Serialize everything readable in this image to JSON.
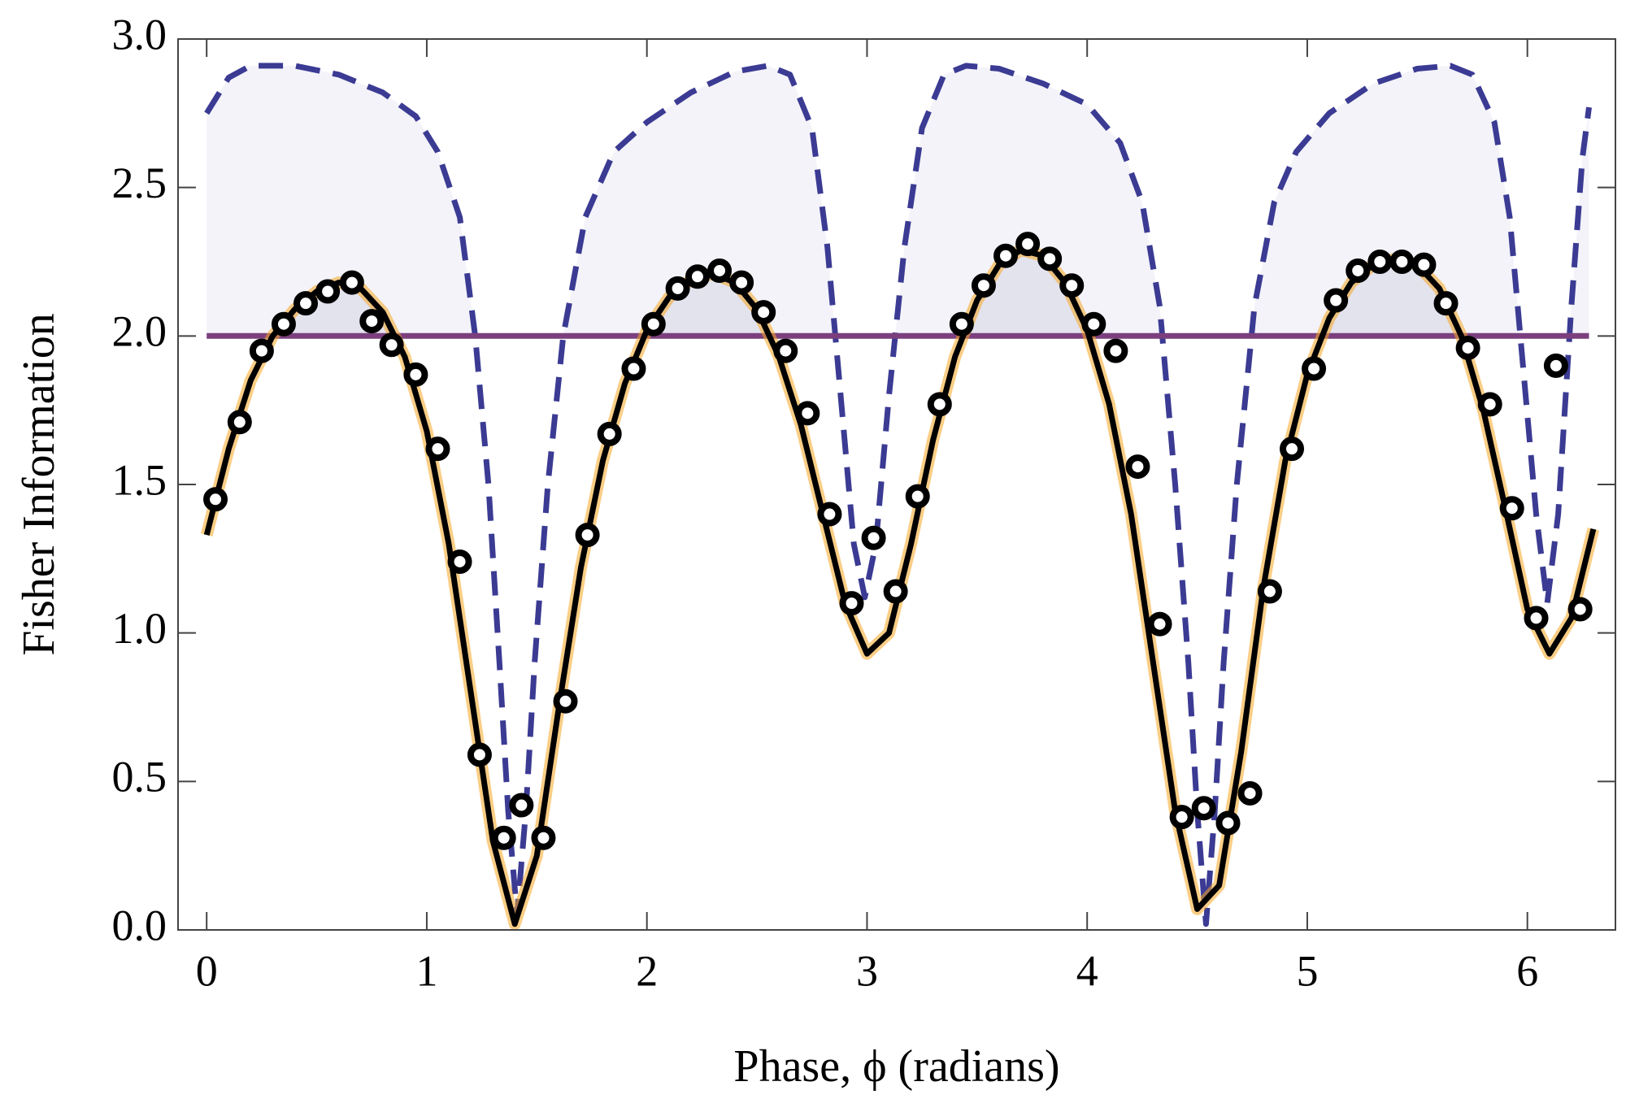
{
  "chart_data": {
    "type": "line",
    "xlabel": "Phase, ϕ (radians)",
    "ylabel": "Fisher Information",
    "xlim": [
      -0.13,
      6.4
    ],
    "ylim": [
      0,
      3
    ],
    "xticks": [
      0,
      1,
      2,
      3,
      4,
      5,
      6
    ],
    "yticks": [
      {
        "value": 0,
        "label": "0.0"
      },
      0.5,
      {
        "value": 1,
        "label": "1.0"
      },
      1.5,
      {
        "value": 2,
        "label": "2.0"
      },
      2.5,
      {
        "value": 3,
        "label": "3.0"
      }
    ],
    "series": [
      {
        "style": "dashed",
        "color": "#3b3b94",
        "fill": "#f3f3f9",
        "x": [
          0,
          0.1,
          0.2,
          0.3,
          0.4,
          0.6,
          0.8,
          0.95,
          1.05,
          1.15,
          1.22,
          1.28,
          1.33,
          1.37,
          1.41,
          1.45,
          1.49,
          1.55,
          1.62,
          1.72,
          1.85,
          2.0,
          2.2,
          2.4,
          2.55,
          2.65,
          2.75,
          2.82,
          2.88,
          2.94,
          2.99,
          3.04,
          3.1,
          3.17,
          3.25,
          3.35,
          3.45,
          3.6,
          3.8,
          4.0,
          4.15,
          4.25,
          4.33,
          4.4,
          4.46,
          4.5,
          4.54,
          4.58,
          4.62,
          4.68,
          4.76,
          4.85,
          4.95,
          5.1,
          5.3,
          5.5,
          5.65,
          5.75,
          5.85,
          5.92,
          5.98,
          6.04,
          6.09,
          6.14,
          6.2,
          6.25,
          6.28
        ],
        "values": [
          2.75,
          2.87,
          2.91,
          2.91,
          2.91,
          2.88,
          2.82,
          2.74,
          2.62,
          2.4,
          2.0,
          1.5,
          0.9,
          0.4,
          0.05,
          0.4,
          0.9,
          1.5,
          2.0,
          2.4,
          2.62,
          2.72,
          2.82,
          2.89,
          2.91,
          2.88,
          2.7,
          2.3,
          1.8,
          1.3,
          1.12,
          1.3,
          1.8,
          2.3,
          2.7,
          2.88,
          2.91,
          2.9,
          2.85,
          2.78,
          2.65,
          2.45,
          2.1,
          1.5,
          0.9,
          0.4,
          0.02,
          0.4,
          0.9,
          1.5,
          2.1,
          2.45,
          2.62,
          2.75,
          2.85,
          2.9,
          2.91,
          2.88,
          2.72,
          2.4,
          1.9,
          1.4,
          1.1,
          1.4,
          2.1,
          2.6,
          2.77
        ]
      },
      {
        "style": "solid",
        "color": "#000000",
        "band_color": "#f5a623",
        "fill": "#e3e3ee",
        "x": [
          0,
          0.1,
          0.2,
          0.3,
          0.4,
          0.5,
          0.6,
          0.7,
          0.8,
          0.9,
          1.0,
          1.1,
          1.2,
          1.3,
          1.4,
          1.5,
          1.6,
          1.7,
          1.8,
          1.9,
          2.0,
          2.1,
          2.2,
          2.3,
          2.4,
          2.5,
          2.6,
          2.7,
          2.8,
          2.9,
          3.0,
          3.1,
          3.2,
          3.3,
          3.4,
          3.5,
          3.6,
          3.7,
          3.8,
          3.9,
          4.0,
          4.1,
          4.2,
          4.3,
          4.4,
          4.5,
          4.6,
          4.7,
          4.8,
          4.9,
          5.0,
          5.1,
          5.2,
          5.3,
          5.4,
          5.5,
          5.6,
          5.7,
          5.8,
          5.9,
          6.0,
          6.1,
          6.2,
          6.3
        ],
        "values": [
          1.33,
          1.62,
          1.85,
          2.0,
          2.09,
          2.15,
          2.18,
          2.16,
          2.08,
          1.93,
          1.68,
          1.3,
          0.8,
          0.3,
          0.02,
          0.25,
          0.75,
          1.22,
          1.58,
          1.84,
          2.02,
          2.13,
          2.19,
          2.21,
          2.18,
          2.09,
          1.93,
          1.7,
          1.4,
          1.1,
          0.93,
          1.0,
          1.3,
          1.65,
          1.93,
          2.12,
          2.24,
          2.29,
          2.27,
          2.18,
          2.02,
          1.77,
          1.4,
          0.9,
          0.4,
          0.07,
          0.15,
          0.6,
          1.15,
          1.58,
          1.87,
          2.06,
          2.18,
          2.24,
          2.26,
          2.24,
          2.16,
          2.0,
          1.75,
          1.42,
          1.08,
          0.93,
          1.05,
          1.35
        ]
      },
      {
        "style": "hline",
        "color": "#7b3f7e",
        "x": [
          0,
          6.28
        ],
        "values": [
          2,
          2
        ]
      },
      {
        "style": "markers",
        "color": "#000000",
        "x": [
          0.04,
          0.15,
          0.25,
          0.35,
          0.45,
          0.55,
          0.66,
          0.75,
          0.84,
          0.95,
          1.05,
          1.15,
          1.24,
          1.35,
          1.43,
          1.53,
          1.63,
          1.73,
          1.83,
          1.94,
          2.03,
          2.14,
          2.23,
          2.33,
          2.43,
          2.53,
          2.63,
          2.73,
          2.83,
          2.93,
          3.03,
          3.13,
          3.23,
          3.33,
          3.43,
          3.53,
          3.63,
          3.73,
          3.83,
          3.93,
          4.03,
          4.13,
          4.23,
          4.33,
          4.43,
          4.53,
          4.64,
          4.74,
          4.83,
          4.93,
          5.03,
          5.13,
          5.23,
          5.33,
          5.43,
          5.53,
          5.63,
          5.73,
          5.83,
          5.93,
          6.04,
          6.13,
          6.24
        ],
        "values": [
          1.45,
          1.71,
          1.95,
          2.04,
          2.11,
          2.15,
          2.18,
          2.05,
          1.97,
          1.87,
          1.62,
          1.24,
          0.59,
          0.31,
          0.42,
          0.31,
          0.77,
          1.33,
          1.67,
          1.89,
          2.04,
          2.16,
          2.2,
          2.22,
          2.18,
          2.08,
          1.95,
          1.74,
          1.4,
          1.1,
          1.32,
          1.14,
          1.46,
          1.77,
          2.04,
          2.17,
          2.27,
          2.31,
          2.26,
          2.17,
          2.04,
          1.95,
          1.56,
          1.03,
          0.38,
          0.41,
          0.36,
          0.46,
          1.14,
          1.62,
          1.89,
          2.12,
          2.22,
          2.25,
          2.25,
          2.24,
          2.11,
          1.96,
          1.77,
          1.42,
          1.05,
          1.9,
          1.08
        ]
      }
    ]
  }
}
